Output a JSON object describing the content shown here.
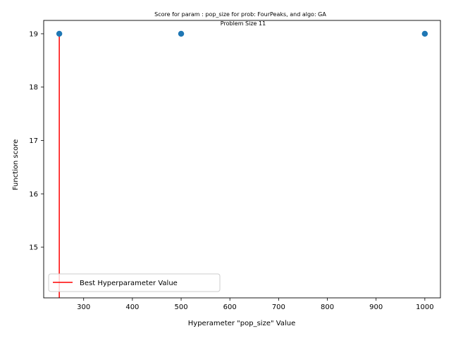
{
  "chart_data": {
    "type": "scatter",
    "title": "Score for param : pop_size for prob: FourPeaks, and algo: GA",
    "subtitle": "Problem Size 11",
    "xlabel": "Hyperameter \"pop_size\" Value",
    "ylabel": "Function score",
    "xlim": [
      218,
      1032
    ],
    "ylim": [
      14.05,
      19.25
    ],
    "x_ticks": [
      300,
      400,
      500,
      600,
      700,
      800,
      900,
      1000
    ],
    "y_ticks": [
      15,
      16,
      17,
      18,
      19
    ],
    "grid": false,
    "series": [
      {
        "marker": "circle",
        "color": "#1f77b4",
        "points": [
          {
            "x": 250,
            "y": 19
          },
          {
            "x": 500,
            "y": 19
          },
          {
            "x": 1000,
            "y": 19
          }
        ]
      }
    ],
    "best_line": {
      "name": "Best Hyperparameter Value",
      "x": 250,
      "y_from": 14.05,
      "y_to": 19,
      "color": "#ff0000"
    },
    "legend": {
      "placement": "lower-left",
      "entries": [
        "Best Hyperparameter Value"
      ]
    }
  }
}
